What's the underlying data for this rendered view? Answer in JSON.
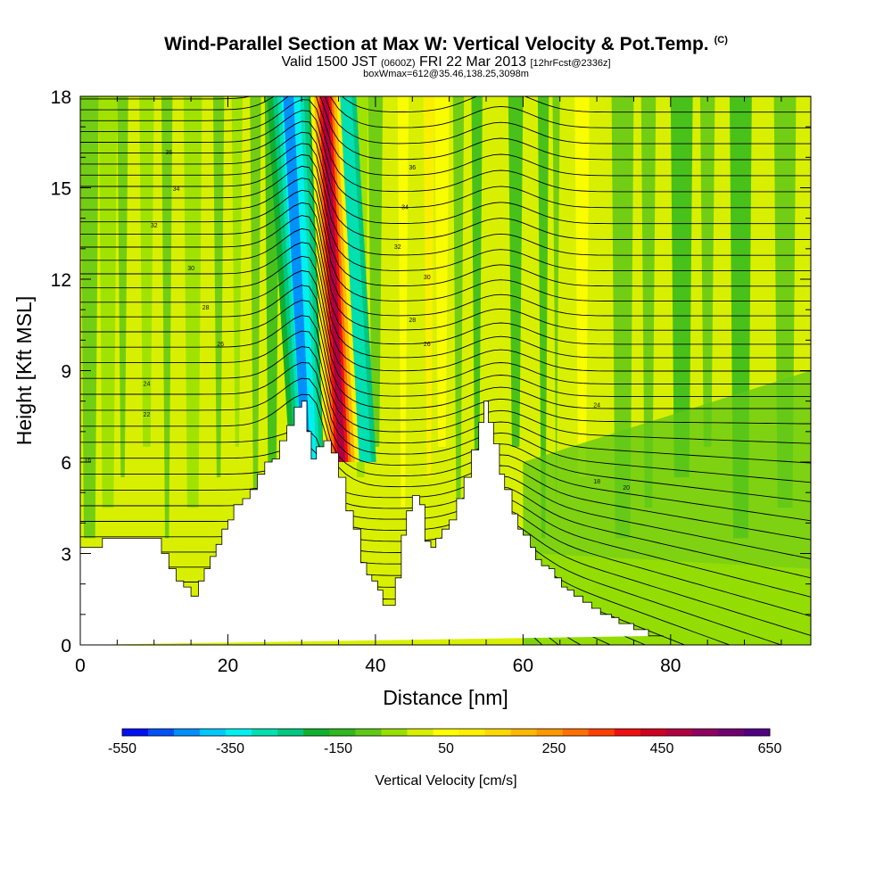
{
  "header": {
    "title": "Wind-Parallel Section at Max W: Vertical Velocity & Pot.Temp.",
    "title_mark": "(C)",
    "valid_prefix": "Valid 1500 JST",
    "valid_utc": "(0600Z)",
    "valid_date": "FRI 22 Mar 2013",
    "forecast": "[12hrFcst@2336z]",
    "box_info": "boxWmax=612@35.46,138.25,3098m"
  },
  "chart_data": {
    "type": "heatmap",
    "xlabel": "Distance [nm]",
    "ylabel": "Height [Kft MSL]",
    "xlim": [
      0,
      99
    ],
    "ylim": [
      0,
      18
    ],
    "x_ticks": [
      "0",
      "20",
      "40",
      "60",
      "80"
    ],
    "y_ticks": [
      "0",
      "3",
      "6",
      "9",
      "12",
      "15",
      "18"
    ],
    "colorbar": {
      "title": "Vertical Velocity [cm/s]",
      "tick_labels": [
        "-550",
        "-350",
        "-150",
        "50",
        "250",
        "450",
        "650"
      ],
      "tick_values": [
        -550,
        -350,
        -150,
        50,
        250,
        450,
        650
      ],
      "min": -550,
      "max": 650,
      "colors": [
        "#0010f0",
        "#0050f8",
        "#0090fc",
        "#00c8fc",
        "#00f0f0",
        "#00e0b0",
        "#00c880",
        "#10b030",
        "#30b820",
        "#60c818",
        "#98e000",
        "#d8f000",
        "#ffff00",
        "#fff000",
        "#ffd800",
        "#ffb800",
        "#ff9800",
        "#ff7000",
        "#ff4000",
        "#f01010",
        "#d00020",
        "#b00040",
        "#900060",
        "#700070",
        "#500080"
      ]
    },
    "terrain_profile": {
      "x": [
        0,
        3,
        3,
        11,
        11,
        12,
        12,
        13,
        13,
        14,
        14,
        15,
        15,
        16,
        16,
        16.8,
        16.8,
        17.6,
        17.6,
        18.4,
        18.4,
        19.2,
        19.2,
        20,
        20,
        20.8,
        20.8,
        22,
        22,
        23,
        23,
        24,
        24,
        25,
        25,
        26,
        26,
        27,
        27,
        28,
        28,
        29,
        29,
        30,
        30,
        30.7,
        30.7,
        31.3,
        31.3,
        32,
        32,
        33,
        33,
        34,
        34,
        35,
        35,
        36,
        36,
        37,
        37,
        38,
        38,
        38.8,
        38.8,
        39.5,
        39.5,
        40.3,
        40.3,
        41,
        41,
        42,
        42,
        42.7,
        42.7,
        43.5,
        43.5,
        44.2,
        44.2,
        45,
        45,
        46,
        46,
        46.7,
        46.7,
        47.5,
        47.5,
        48.2,
        48.2,
        49,
        49,
        50,
        50,
        51,
        51,
        52,
        52,
        53,
        53,
        54,
        54,
        54.7,
        54.7,
        55.3,
        55.3,
        56,
        56,
        56.8,
        56.8,
        57.5,
        57.5,
        58.5,
        58.5,
        59.3,
        59.3,
        60,
        60,
        61,
        61,
        61.7,
        61.7,
        62.5,
        62.5,
        63.5,
        63.5,
        64.3,
        64.3,
        65.2,
        65.2,
        66,
        66,
        66.9,
        66.9,
        68.1,
        68.1,
        69.3,
        69.3,
        70.5,
        70.5,
        72,
        72,
        73,
        73,
        75,
        75,
        77,
        77,
        79,
        79,
        82,
        82,
        87,
        87,
        99
      ],
      "y": [
        3.2,
        3.2,
        3.5,
        3.5,
        3.0,
        3.0,
        2.5,
        2.5,
        2.1,
        2.1,
        1.9,
        1.9,
        1.6,
        1.6,
        2.1,
        2.1,
        2.5,
        2.5,
        2.9,
        2.9,
        3.3,
        3.3,
        3.8,
        3.8,
        4.1,
        4.1,
        4.6,
        4.6,
        4.8,
        4.8,
        5.1,
        5.1,
        5.6,
        5.6,
        6.0,
        6.0,
        6.1,
        6.1,
        6.7,
        6.7,
        7.2,
        7.2,
        7.8,
        7.8,
        8.0,
        8.0,
        7.0,
        7.0,
        6.1,
        6.1,
        6.5,
        6.5,
        6.7,
        6.7,
        6.3,
        6.3,
        5.5,
        5.5,
        4.4,
        4.4,
        3.8,
        3.8,
        2.7,
        2.7,
        2.3,
        2.3,
        2.1,
        2.1,
        1.8,
        1.8,
        1.3,
        1.3,
        1.3,
        1.3,
        2.2,
        2.2,
        3.6,
        3.6,
        4.4,
        4.4,
        4.9,
        4.9,
        4.6,
        4.6,
        3.4,
        3.4,
        3.2,
        3.2,
        3.5,
        3.5,
        3.8,
        3.8,
        4.1,
        4.1,
        4.8,
        4.8,
        5.5,
        5.5,
        6.4,
        6.4,
        7.3,
        7.3,
        8.0,
        8.0,
        7.3,
        7.3,
        6.6,
        6.6,
        5.6,
        5.6,
        5.1,
        5.1,
        4.3,
        4.3,
        3.8,
        3.8,
        3.6,
        3.6,
        3.2,
        3.2,
        2.8,
        2.8,
        2.6,
        2.6,
        2.5,
        2.5,
        2.2,
        2.2,
        1.9,
        1.9,
        1.8,
        1.8,
        1.6,
        1.6,
        1.4,
        1.4,
        1.2,
        1.2,
        1.0,
        1.0,
        0.9,
        0.9,
        0.7,
        0.7,
        0.5,
        0.5,
        0.3,
        0.3,
        0.3
      ],
      "fill": "#ffffff"
    },
    "updraft_core": {
      "x_bottom": 36,
      "x_top": 33.2,
      "peak": 612,
      "min_value": 450
    },
    "downdraft_core": {
      "x_bottom": 31,
      "x_top": 28.5,
      "min": -450
    },
    "isentrope_labels": [
      "36",
      "34",
      "32",
      "30",
      "28",
      "26",
      "24",
      "22",
      "16",
      "36",
      "34",
      "32",
      "30",
      "28",
      "26",
      "24",
      "20",
      "18"
    ],
    "background_regime": "green-yellow alternating bands (-150 to 150 cm/s)"
  }
}
